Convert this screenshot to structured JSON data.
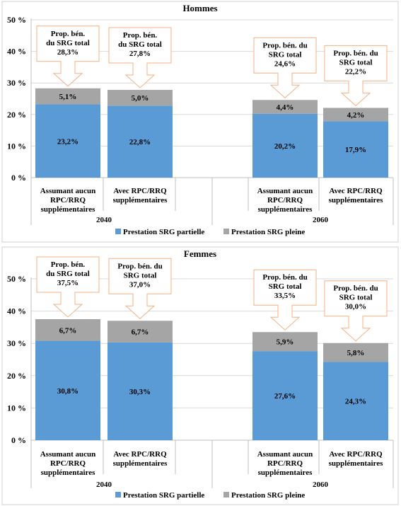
{
  "chart_data": [
    {
      "type": "bar",
      "title": "Hommes",
      "stacked": true,
      "ylim": [
        0,
        50
      ],
      "yticks": [
        "0 %",
        "10 %",
        "20 %",
        "30 %",
        "40 %",
        "50 %"
      ],
      "categories": [
        {
          "label": "Assumant aucun RPC/RRQ supplémentaires",
          "lines": [
            "Assumant aucun",
            "RPC/RRQ",
            "supplémentaires"
          ],
          "group": "2040"
        },
        {
          "label": "Avec RPC/RRQ supplémentaires",
          "lines": [
            "Avec RPC/RRQ",
            "supplémentaires"
          ],
          "group": "2040"
        },
        {
          "label": "Assumant aucun RPC/RRQ supplémentaires",
          "lines": [
            "Assumant aucun",
            "RPC/RRQ",
            "supplémentaires"
          ],
          "group": "2060"
        },
        {
          "label": "Avec RPC/RRQ supplémentaires",
          "lines": [
            "Avec RPC/RRQ",
            "supplémentaires"
          ],
          "group": "2060"
        }
      ],
      "groups": [
        "2040",
        "2060"
      ],
      "series": [
        {
          "name": "Prestation SRG partielle",
          "color": "#5b9bd5",
          "values": [
            23.2,
            22.8,
            20.2,
            17.9
          ],
          "labels": [
            "23,2%",
            "22,8%",
            "20,2%",
            "17,9%"
          ]
        },
        {
          "name": "Prestation SRG pleine",
          "color": "#a5a5a5",
          "values": [
            5.1,
            5.0,
            4.4,
            4.2
          ],
          "labels": [
            "5,1%",
            "5,0%",
            "4,4%",
            "4,2%"
          ]
        }
      ],
      "callouts": [
        [
          "Prop. bén.",
          "du SRG total",
          "28,3%"
        ],
        [
          "Prop. bén.",
          "du SRG total",
          "27,8%"
        ],
        [
          "Prop. bén. du",
          "SRG total",
          "24,6%"
        ],
        [
          "Prop. bén. du",
          "SRG total",
          "22,2%"
        ]
      ],
      "legend": "bottom"
    },
    {
      "type": "bar",
      "title": "Femmes",
      "stacked": true,
      "ylim": [
        0,
        50
      ],
      "yticks": [
        "0 %",
        "10 %",
        "20 %",
        "30 %",
        "40 %",
        "50 %"
      ],
      "categories": [
        {
          "label": "Assumant aucun RPC/RRQ supplémentaires",
          "lines": [
            "Assumant aucun",
            "RPC/RRQ",
            "supplémentaires"
          ],
          "group": "2040"
        },
        {
          "label": "Avec RPC/RRQ supplémentaires",
          "lines": [
            "Avec RPC/RRQ",
            "supplémentaires"
          ],
          "group": "2040"
        },
        {
          "label": "Assumant aucun RPC/RRQ supplémentaires",
          "lines": [
            "Assumant aucun",
            "RPC/RRQ",
            "supplémentaires"
          ],
          "group": "2060"
        },
        {
          "label": "Avec RPC/RRQ supplémentaires",
          "lines": [
            "Avec RPC/RRQ",
            "supplémentaires"
          ],
          "group": "2060"
        }
      ],
      "groups": [
        "2040",
        "2060"
      ],
      "series": [
        {
          "name": "Prestation SRG partielle",
          "color": "#5b9bd5",
          "values": [
            30.8,
            30.3,
            27.6,
            24.3
          ],
          "labels": [
            "30,8%",
            "30,3%",
            "27,6%",
            "24,3%"
          ]
        },
        {
          "name": "Prestation SRG pleine",
          "color": "#a5a5a5",
          "values": [
            6.7,
            6.7,
            5.9,
            5.8
          ],
          "labels": [
            "6,7%",
            "6,7%",
            "5,9%",
            "5,8%"
          ]
        }
      ],
      "callouts": [
        [
          "Prop. bén.",
          "du SRG total",
          "37,5%"
        ],
        [
          "Prop. bén. du",
          "SRG total",
          "37,0%"
        ],
        [
          "Prop. bén. du",
          "SRG total",
          "33,5%"
        ],
        [
          "Prop. bén. du",
          "SRG total",
          "30,0%"
        ]
      ],
      "legend": "bottom"
    }
  ]
}
